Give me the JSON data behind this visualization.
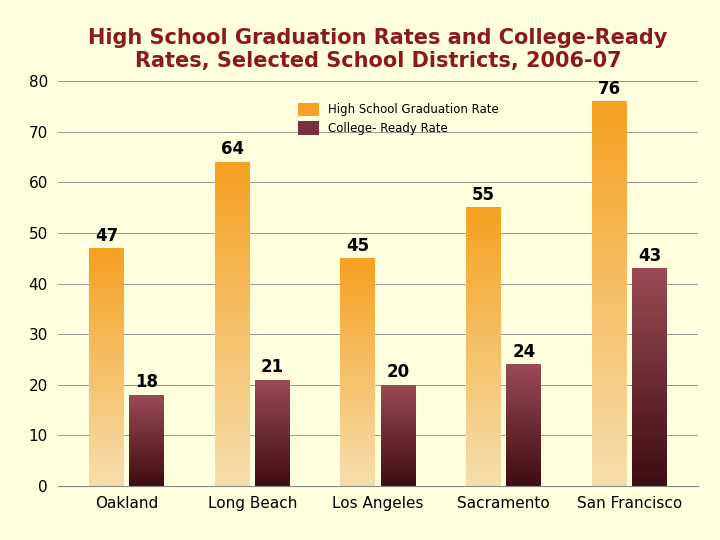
{
  "title": "High School Graduation Rates and College-Ready\nRates, Selected School Districts, 2006-07",
  "categories": [
    "Oakland",
    "Long Beach",
    "Los Angeles",
    "Sacramento",
    "San Francisco"
  ],
  "grad_rates": [
    47,
    64,
    45,
    55,
    76
  ],
  "college_rates": [
    18,
    21,
    20,
    24,
    43
  ],
  "legend_labels": [
    "High School Graduation Rate",
    "College- Ready Rate"
  ],
  "grad_color_top": "#F5A020",
  "grad_color_bottom": "#F5DEAD",
  "college_color_top": "#9B4A55",
  "college_color_bottom": "#3D0C10",
  "background_color": "#FFFFDD",
  "title_color": "#8B1A1A",
  "label_color": "#000000",
  "ylim": [
    0,
    80
  ],
  "yticks": [
    0,
    10,
    20,
    30,
    40,
    50,
    60,
    70,
    80
  ],
  "bar_width": 0.28,
  "title_fontsize": 15,
  "value_fontsize": 12,
  "axis_fontsize": 11
}
